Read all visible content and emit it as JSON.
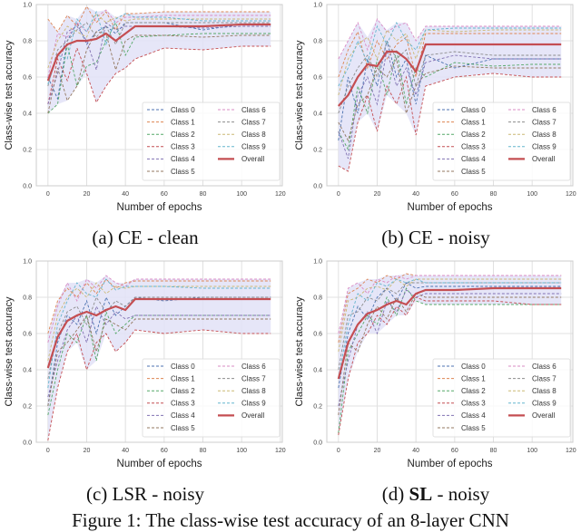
{
  "colors": {
    "classes": [
      "#4c72b0",
      "#dd8452",
      "#55a868",
      "#c44e52",
      "#8172b3",
      "#937860",
      "#da8bc3",
      "#8c8c8c",
      "#ccb974",
      "#64b5cd"
    ],
    "overall": "#c44e52",
    "band": "#e2e2f7",
    "grid": "#e0e0e0"
  },
  "figure_caption": "Figure 1: The class-wise test accuracy of an 8-layer CNN",
  "chart_data": [
    {
      "type": "line",
      "caption": {
        "prefix": "(a) ",
        "bold": "",
        "suffix": "CE - clean"
      },
      "xlabel": "Number of epochs",
      "ylabel": "Class-wise test accuracy",
      "xlim": [
        -6,
        121
      ],
      "ylim": [
        0,
        1
      ],
      "xticks": [
        "0",
        "20",
        "40",
        "60",
        "80",
        "100",
        "120"
      ],
      "yticks": [
        "0.0",
        "0.2",
        "0.4",
        "0.6",
        "0.8",
        "1.0"
      ],
      "legend_position": "lower-right",
      "x": [
        0,
        5,
        10,
        15,
        20,
        25,
        30,
        35,
        40,
        45,
        60,
        80,
        100,
        115
      ],
      "series": [
        {
          "name": "Class 0",
          "values": [
            0.6,
            0.48,
            0.8,
            0.9,
            0.78,
            0.85,
            0.88,
            0.84,
            0.9,
            0.9,
            0.9,
            0.86,
            0.89,
            0.89
          ]
        },
        {
          "name": "Class 1",
          "values": [
            0.92,
            0.85,
            0.94,
            0.88,
            0.99,
            0.9,
            0.96,
            0.86,
            0.95,
            0.95,
            0.96,
            0.96,
            0.96,
            0.96
          ]
        },
        {
          "name": "Class 2",
          "values": [
            0.4,
            0.45,
            0.78,
            0.55,
            0.66,
            0.68,
            0.8,
            0.9,
            0.72,
            0.82,
            0.83,
            0.84,
            0.84,
            0.84
          ]
        },
        {
          "name": "Class 3",
          "values": [
            0.45,
            0.7,
            0.58,
            0.76,
            0.62,
            0.46,
            0.55,
            0.62,
            0.65,
            0.7,
            0.76,
            0.75,
            0.77,
            0.77
          ]
        },
        {
          "name": "Class 4",
          "values": [
            0.45,
            0.62,
            0.85,
            0.88,
            0.8,
            0.64,
            0.9,
            0.86,
            0.88,
            0.88,
            0.88,
            0.87,
            0.88,
            0.88
          ]
        },
        {
          "name": "Class 5",
          "values": [
            0.4,
            0.65,
            0.47,
            0.55,
            0.75,
            0.85,
            0.84,
            0.64,
            0.8,
            0.83,
            0.83,
            0.82,
            0.83,
            0.83
          ]
        },
        {
          "name": "Class 6",
          "values": [
            0.6,
            0.84,
            0.82,
            0.9,
            0.85,
            0.93,
            0.97,
            0.9,
            0.93,
            0.93,
            0.94,
            0.94,
            0.94,
            0.94
          ]
        },
        {
          "name": "Class 7",
          "values": [
            0.55,
            0.75,
            0.8,
            0.86,
            0.9,
            0.82,
            0.88,
            0.78,
            0.9,
            0.9,
            0.9,
            0.9,
            0.9,
            0.9
          ]
        },
        {
          "name": "Class 8",
          "values": [
            0.65,
            0.8,
            0.88,
            0.85,
            0.82,
            0.95,
            0.9,
            0.93,
            0.91,
            0.92,
            0.92,
            0.92,
            0.92,
            0.92
          ]
        },
        {
          "name": "Class 9",
          "values": [
            0.56,
            0.72,
            0.7,
            0.92,
            0.85,
            0.96,
            0.78,
            0.92,
            0.95,
            0.93,
            0.93,
            0.91,
            0.91,
            0.91
          ]
        },
        {
          "name": "Overall",
          "values": [
            0.58,
            0.72,
            0.78,
            0.8,
            0.8,
            0.81,
            0.84,
            0.8,
            0.84,
            0.88,
            0.88,
            0.88,
            0.89,
            0.89
          ]
        }
      ]
    },
    {
      "type": "line",
      "caption": {
        "prefix": "(b) ",
        "bold": "",
        "suffix": "CE - noisy"
      },
      "xlabel": "Number of epochs",
      "ylabel": "Class-wise test accuracy",
      "xlim": [
        -6,
        121
      ],
      "ylim": [
        0,
        1
      ],
      "xticks": [
        "0",
        "20",
        "40",
        "60",
        "80",
        "100",
        "120"
      ],
      "yticks": [
        "0.0",
        "0.2",
        "0.4",
        "0.6",
        "0.8",
        "1.0"
      ],
      "legend_position": "lower-right",
      "x": [
        0,
        5,
        10,
        15,
        20,
        25,
        30,
        35,
        40,
        45,
        60,
        80,
        100,
        115
      ],
      "series": [
        {
          "name": "Class 0",
          "values": [
            0.25,
            0.6,
            0.4,
            0.7,
            0.55,
            0.8,
            0.6,
            0.7,
            0.45,
            0.72,
            0.65,
            0.7,
            0.7,
            0.7
          ]
        },
        {
          "name": "Class 1",
          "values": [
            0.6,
            0.75,
            0.85,
            0.65,
            0.8,
            0.7,
            0.78,
            0.82,
            0.6,
            0.84,
            0.84,
            0.84,
            0.84,
            0.84
          ]
        },
        {
          "name": "Class 2",
          "values": [
            0.3,
            0.2,
            0.55,
            0.4,
            0.7,
            0.5,
            0.75,
            0.45,
            0.65,
            0.6,
            0.68,
            0.66,
            0.67,
            0.67
          ]
        },
        {
          "name": "Class 3",
          "values": [
            0.11,
            0.08,
            0.35,
            0.5,
            0.3,
            0.55,
            0.45,
            0.6,
            0.28,
            0.55,
            0.6,
            0.62,
            0.6,
            0.6
          ]
        },
        {
          "name": "Class 4",
          "values": [
            0.3,
            0.15,
            0.5,
            0.6,
            0.45,
            0.75,
            0.55,
            0.65,
            0.5,
            0.68,
            0.72,
            0.7,
            0.7,
            0.7
          ]
        },
        {
          "name": "Class 5",
          "values": [
            0.35,
            0.25,
            0.45,
            0.5,
            0.65,
            0.6,
            0.7,
            0.4,
            0.55,
            0.62,
            0.66,
            0.65,
            0.65,
            0.65
          ]
        },
        {
          "name": "Class 6",
          "values": [
            0.7,
            0.8,
            0.9,
            0.75,
            0.92,
            0.85,
            0.88,
            0.9,
            0.8,
            0.88,
            0.88,
            0.88,
            0.88,
            0.88
          ]
        },
        {
          "name": "Class 7",
          "values": [
            0.4,
            0.55,
            0.65,
            0.72,
            0.6,
            0.8,
            0.7,
            0.75,
            0.55,
            0.72,
            0.74,
            0.72,
            0.72,
            0.72
          ]
        },
        {
          "name": "Class 8",
          "values": [
            0.5,
            0.7,
            0.78,
            0.82,
            0.7,
            0.86,
            0.8,
            0.84,
            0.7,
            0.86,
            0.85,
            0.86,
            0.86,
            0.86
          ]
        },
        {
          "name": "Class 9",
          "values": [
            0.55,
            0.65,
            0.8,
            0.68,
            0.88,
            0.78,
            0.9,
            0.8,
            0.75,
            0.86,
            0.87,
            0.87,
            0.87,
            0.87
          ]
        },
        {
          "name": "Overall",
          "values": [
            0.44,
            0.5,
            0.6,
            0.67,
            0.66,
            0.74,
            0.74,
            0.7,
            0.63,
            0.78,
            0.78,
            0.78,
            0.78,
            0.78
          ]
        }
      ]
    },
    {
      "type": "line",
      "caption": {
        "prefix": "(c) ",
        "bold": "",
        "suffix": "LSR - noisy"
      },
      "xlabel": "Number of epochs",
      "ylabel": "Class-wise test accuracy",
      "xlim": [
        -6,
        121
      ],
      "ylim": [
        0,
        1
      ],
      "xticks": [
        "0",
        "20",
        "40",
        "60",
        "80",
        "100",
        "120"
      ],
      "yticks": [
        "0.0",
        "0.2",
        "0.4",
        "0.6",
        "0.8",
        "1.0"
      ],
      "legend_position": "lower-right",
      "x": [
        0,
        5,
        10,
        15,
        20,
        25,
        30,
        35,
        40,
        45,
        60,
        80,
        100,
        115
      ],
      "series": [
        {
          "name": "Class 0",
          "values": [
            0.2,
            0.55,
            0.7,
            0.65,
            0.78,
            0.6,
            0.8,
            0.7,
            0.75,
            0.8,
            0.78,
            0.8,
            0.8,
            0.8
          ]
        },
        {
          "name": "Class 1",
          "values": [
            0.6,
            0.78,
            0.85,
            0.8,
            0.88,
            0.82,
            0.9,
            0.85,
            0.88,
            0.89,
            0.89,
            0.89,
            0.89,
            0.89
          ]
        },
        {
          "name": "Class 2",
          "values": [
            0.15,
            0.4,
            0.6,
            0.55,
            0.7,
            0.45,
            0.72,
            0.6,
            0.65,
            0.7,
            0.7,
            0.7,
            0.7,
            0.7
          ]
        },
        {
          "name": "Class 3",
          "values": [
            0.01,
            0.3,
            0.5,
            0.6,
            0.4,
            0.55,
            0.6,
            0.5,
            0.55,
            0.62,
            0.6,
            0.62,
            0.6,
            0.6
          ]
        },
        {
          "name": "Class 4",
          "values": [
            0.25,
            0.45,
            0.62,
            0.7,
            0.55,
            0.75,
            0.65,
            0.72,
            0.68,
            0.7,
            0.7,
            0.7,
            0.7,
            0.7
          ]
        },
        {
          "name": "Class 5",
          "values": [
            0.2,
            0.5,
            0.55,
            0.62,
            0.7,
            0.5,
            0.68,
            0.65,
            0.62,
            0.68,
            0.68,
            0.68,
            0.68,
            0.68
          ]
        },
        {
          "name": "Class 6",
          "values": [
            0.55,
            0.75,
            0.88,
            0.78,
            0.9,
            0.85,
            0.92,
            0.88,
            0.86,
            0.9,
            0.9,
            0.9,
            0.9,
            0.9
          ]
        },
        {
          "name": "Class 7",
          "values": [
            0.35,
            0.6,
            0.72,
            0.75,
            0.65,
            0.8,
            0.72,
            0.78,
            0.75,
            0.8,
            0.8,
            0.8,
            0.8,
            0.8
          ]
        },
        {
          "name": "Class 8",
          "values": [
            0.45,
            0.7,
            0.8,
            0.85,
            0.8,
            0.88,
            0.82,
            0.86,
            0.85,
            0.86,
            0.86,
            0.86,
            0.86,
            0.86
          ]
        },
        {
          "name": "Class 9",
          "values": [
            0.3,
            0.65,
            0.78,
            0.88,
            0.82,
            0.8,
            0.9,
            0.84,
            0.86,
            0.86,
            0.86,
            0.85,
            0.85,
            0.85
          ]
        },
        {
          "name": "Overall",
          "values": [
            0.41,
            0.58,
            0.67,
            0.7,
            0.72,
            0.7,
            0.73,
            0.75,
            0.73,
            0.79,
            0.79,
            0.79,
            0.79,
            0.79
          ]
        }
      ]
    },
    {
      "type": "line",
      "caption": {
        "prefix": "(d) ",
        "bold": "SL",
        "suffix": " - noisy"
      },
      "xlabel": "Number of epochs",
      "ylabel": "Class-wise test accuracy",
      "xlim": [
        -6,
        121
      ],
      "ylim": [
        0,
        1
      ],
      "xticks": [
        "0",
        "20",
        "40",
        "60",
        "80",
        "100",
        "120"
      ],
      "yticks": [
        "0.0",
        "0.2",
        "0.4",
        "0.6",
        "0.8",
        "1.0"
      ],
      "legend_position": "lower-right",
      "x": [
        0,
        5,
        10,
        15,
        20,
        25,
        30,
        35,
        40,
        45,
        60,
        80,
        100,
        115
      ],
      "series": [
        {
          "name": "Class 0",
          "values": [
            0.3,
            0.6,
            0.75,
            0.68,
            0.8,
            0.85,
            0.78,
            0.88,
            0.85,
            0.86,
            0.86,
            0.86,
            0.86,
            0.86
          ]
        },
        {
          "name": "Class 1",
          "values": [
            0.55,
            0.82,
            0.85,
            0.9,
            0.88,
            0.92,
            0.9,
            0.93,
            0.92,
            0.92,
            0.92,
            0.92,
            0.92,
            0.92
          ]
        },
        {
          "name": "Class 2",
          "values": [
            0.05,
            0.5,
            0.6,
            0.7,
            0.65,
            0.8,
            0.7,
            0.85,
            0.78,
            0.76,
            0.76,
            0.76,
            0.76,
            0.76
          ]
        },
        {
          "name": "Class 3",
          "values": [
            0.04,
            0.35,
            0.55,
            0.6,
            0.7,
            0.65,
            0.75,
            0.7,
            0.8,
            0.78,
            0.78,
            0.78,
            0.76,
            0.76
          ]
        },
        {
          "name": "Class 4",
          "values": [
            0.2,
            0.45,
            0.65,
            0.72,
            0.6,
            0.78,
            0.72,
            0.84,
            0.8,
            0.82,
            0.82,
            0.82,
            0.82,
            0.82
          ]
        },
        {
          "name": "Class 5",
          "values": [
            0.15,
            0.55,
            0.5,
            0.65,
            0.75,
            0.68,
            0.8,
            0.72,
            0.82,
            0.8,
            0.8,
            0.8,
            0.8,
            0.8
          ]
        },
        {
          "name": "Class 6",
          "values": [
            0.6,
            0.85,
            0.88,
            0.82,
            0.9,
            0.88,
            0.92,
            0.9,
            0.92,
            0.92,
            0.92,
            0.92,
            0.92,
            0.92
          ]
        },
        {
          "name": "Class 7",
          "values": [
            0.4,
            0.7,
            0.72,
            0.8,
            0.78,
            0.85,
            0.82,
            0.88,
            0.88,
            0.88,
            0.88,
            0.88,
            0.88,
            0.88
          ]
        },
        {
          "name": "Class 8",
          "values": [
            0.5,
            0.78,
            0.8,
            0.85,
            0.86,
            0.84,
            0.9,
            0.86,
            0.9,
            0.9,
            0.9,
            0.9,
            0.9,
            0.9
          ]
        },
        {
          "name": "Class 9",
          "values": [
            0.35,
            0.65,
            0.82,
            0.78,
            0.88,
            0.86,
            0.9,
            0.88,
            0.9,
            0.88,
            0.88,
            0.88,
            0.88,
            0.88
          ]
        },
        {
          "name": "Overall",
          "values": [
            0.35,
            0.55,
            0.65,
            0.71,
            0.73,
            0.76,
            0.78,
            0.76,
            0.82,
            0.84,
            0.84,
            0.85,
            0.85,
            0.85
          ]
        }
      ]
    }
  ]
}
